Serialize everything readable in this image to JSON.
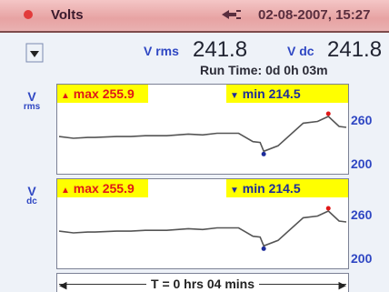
{
  "title_bar": {
    "mode": "Volts",
    "datetime": "02-08-2007, 15:27"
  },
  "readouts": {
    "vrms_label": "V rms",
    "vrms_value": "241.8",
    "vdc_label": "V dc",
    "vdc_value": "241.8",
    "run_time": "Run Time: 0d 0h 03m"
  },
  "plots": [
    {
      "axis_label_top": "V",
      "axis_label_bottom": "rms",
      "max_text": "max 255.9",
      "min_text": "min 214.5",
      "y_tick_high": "260",
      "y_tick_low": "200"
    },
    {
      "axis_label_top": "V",
      "axis_label_bottom": "dc",
      "max_text": "max 255.9",
      "min_text": "min 214.5",
      "y_tick_high": "260",
      "y_tick_low": "200"
    }
  ],
  "time_bar": {
    "label": "T = 0 hrs 04 mins"
  },
  "colors": {
    "title_bar": "#e9a9a9",
    "highlight": "#ffff00",
    "max_text": "#e01818",
    "min_text": "#1d2c9a",
    "axis_label": "#2f47c3",
    "trace": "#555555"
  },
  "chart_data": [
    {
      "type": "line",
      "xlabel": "T = 0 hrs 04 mins",
      "ylabel": "V rms",
      "ylim": [
        190,
        270
      ],
      "y_ticks": [
        200,
        260
      ],
      "annotations": [
        "max 255.9",
        "min 214.5"
      ],
      "x": [
        0,
        0.2,
        0.4,
        0.5,
        0.8,
        1,
        1.2,
        1.5,
        1.8,
        2,
        2.2,
        2.5,
        2.7,
        2.8,
        2.85,
        3.05,
        3.4,
        3.6,
        3.75,
        3.9,
        4
      ],
      "values": [
        232,
        230,
        231,
        231,
        232,
        232,
        233,
        233,
        235,
        234,
        236,
        236,
        226,
        225,
        214.5,
        221,
        248,
        250,
        255.9,
        244,
        243
      ]
    },
    {
      "type": "line",
      "xlabel": "T = 0 hrs 04 mins",
      "ylabel": "V dc",
      "ylim": [
        190,
        270
      ],
      "y_ticks": [
        200,
        260
      ],
      "annotations": [
        "max 255.9",
        "min 214.5"
      ],
      "x": [
        0,
        0.2,
        0.4,
        0.5,
        0.8,
        1,
        1.2,
        1.5,
        1.8,
        2,
        2.2,
        2.5,
        2.7,
        2.8,
        2.85,
        3.05,
        3.4,
        3.6,
        3.75,
        3.9,
        4
      ],
      "values": [
        232,
        230,
        231,
        231,
        232,
        232,
        233,
        233,
        235,
        234,
        236,
        236,
        226,
        225,
        214.5,
        221,
        248,
        250,
        255.9,
        244,
        243
      ]
    }
  ]
}
